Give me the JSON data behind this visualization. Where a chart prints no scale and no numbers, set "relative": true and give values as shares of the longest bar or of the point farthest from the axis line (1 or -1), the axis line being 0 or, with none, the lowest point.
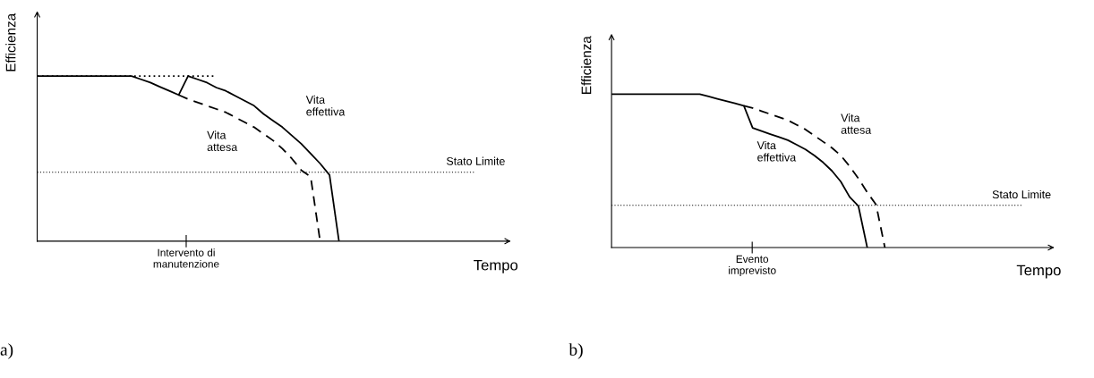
{
  "chart_data": [
    {
      "type": "line",
      "relative": true,
      "xlabel": "Tempo",
      "ylabel": "Efficienza",
      "categories": [
        null,
        null,
        null,
        null,
        null,
        null,
        null,
        null,
        null,
        null,
        null,
        null,
        null,
        null,
        null,
        null,
        null,
        null,
        null,
        null,
        null,
        null,
        null,
        null,
        null,
        null,
        null,
        null,
        null,
        null,
        null,
        null,
        null,
        null,
        null,
        null,
        null,
        null,
        null,
        null,
        null,
        null,
        null,
        null,
        null,
        null,
        null,
        null,
        null,
        null,
        null
      ],
      "series": [
        {
          "color": "#000000",
          "line_style": "dotted",
          "values": [
            1,
            1,
            1,
            1,
            1,
            1,
            1,
            1,
            1,
            1,
            1,
            1,
            1,
            1,
            1,
            1,
            1,
            1,
            1,
            1,
            null,
            null,
            null,
            null,
            null,
            null,
            null,
            null,
            null,
            null,
            null,
            null,
            null,
            null,
            null,
            null,
            null,
            null,
            null,
            null,
            null,
            null,
            null,
            null,
            null,
            null,
            null,
            null,
            null,
            null,
            null
          ]
        },
        {
          "color": "#000000",
          "line_style": "solid",
          "values": [
            1,
            1,
            1,
            1,
            1,
            1,
            1,
            1,
            1,
            1,
            1,
            0.98,
            0.96,
            0.935,
            0.91,
            0.885,
            1,
            0.98,
            0.96,
            0.93,
            0.91,
            0.88,
            0.85,
            0.82,
            0.77,
            0.73,
            0.69,
            0.64,
            0.59,
            0.53,
            0.47,
            0.4,
            0,
            null,
            null,
            null,
            null,
            null,
            null,
            null,
            null,
            null,
            null,
            null,
            null,
            null,
            null,
            null,
            null,
            null,
            null
          ]
        },
        {
          "color": "#000000",
          "line_style": "dashed",
          "values": [
            null,
            null,
            null,
            null,
            null,
            null,
            null,
            null,
            null,
            null,
            null,
            null,
            null,
            null,
            null,
            0.885,
            0.86,
            0.84,
            0.82,
            0.8,
            0.78,
            0.75,
            0.72,
            0.69,
            0.65,
            0.61,
            0.56,
            0.5,
            0.43,
            0.39,
            0,
            null,
            null,
            null,
            null,
            null,
            null,
            null,
            null,
            null,
            null,
            null,
            null,
            null,
            null,
            null,
            null,
            null,
            null,
            null,
            null
          ]
        }
      ],
      "ref_lines": [
        {
          "axis": "y",
          "value": 0.417,
          "label": "Stato Limite",
          "color": "#000000",
          "line_style": "dotted"
        }
      ],
      "annotations": [
        "Vita\neffettiva",
        "Vita\nattesa",
        "Intervento di\nmanutenzione",
        "a)"
      ]
    },
    {
      "type": "line",
      "relative": true,
      "xlabel": "Tempo",
      "ylabel": "Efficienza",
      "categories": [
        null,
        null,
        null,
        null,
        null,
        null,
        null,
        null,
        null,
        null,
        null,
        null,
        null,
        null,
        null,
        null,
        null,
        null,
        null,
        null,
        null,
        null,
        null,
        null,
        null,
        null,
        null,
        null,
        null,
        null,
        null,
        null,
        null,
        null,
        null,
        null,
        null,
        null,
        null,
        null,
        null,
        null,
        null,
        null,
        null,
        null,
        null,
        null,
        null,
        null,
        null
      ],
      "series": [
        {
          "color": "#000000",
          "line_style": "solid",
          "values": [
            1,
            1,
            1,
            1,
            1,
            1,
            1,
            1,
            1,
            1,
            1,
            0.985,
            0.97,
            0.955,
            0.94,
            0.925,
            0.78,
            0.76,
            0.74,
            0.72,
            0.7,
            0.67,
            0.64,
            0.6,
            0.555,
            0.5,
            0.43,
            0.33,
            0.27,
            0,
            null,
            null,
            null,
            null,
            null,
            null,
            null,
            null,
            null,
            null,
            null,
            null,
            null,
            null,
            null,
            null,
            null,
            null,
            null,
            null,
            null
          ]
        },
        {
          "color": "#000000",
          "line_style": "dashed",
          "values": [
            null,
            null,
            null,
            null,
            null,
            null,
            null,
            null,
            null,
            null,
            null,
            null,
            null,
            null,
            null,
            0.925,
            0.91,
            0.89,
            0.87,
            0.85,
            0.83,
            0.8,
            0.77,
            0.73,
            0.69,
            0.65,
            0.6,
            0.53,
            0.45,
            0.36,
            0.28,
            0,
            null,
            null,
            null,
            null,
            null,
            null,
            null,
            null,
            null,
            null,
            null,
            null,
            null,
            null,
            null,
            null,
            null,
            null,
            null
          ]
        }
      ],
      "ref_lines": [
        {
          "axis": "y",
          "value": 0.276,
          "label": "Stato Limite",
          "color": "#000000",
          "line_style": "dotted"
        }
      ],
      "annotations": [
        "Vita\neffettiva",
        "Vita\nattesa",
        "Evento\nimprevisto",
        "b)"
      ]
    }
  ]
}
